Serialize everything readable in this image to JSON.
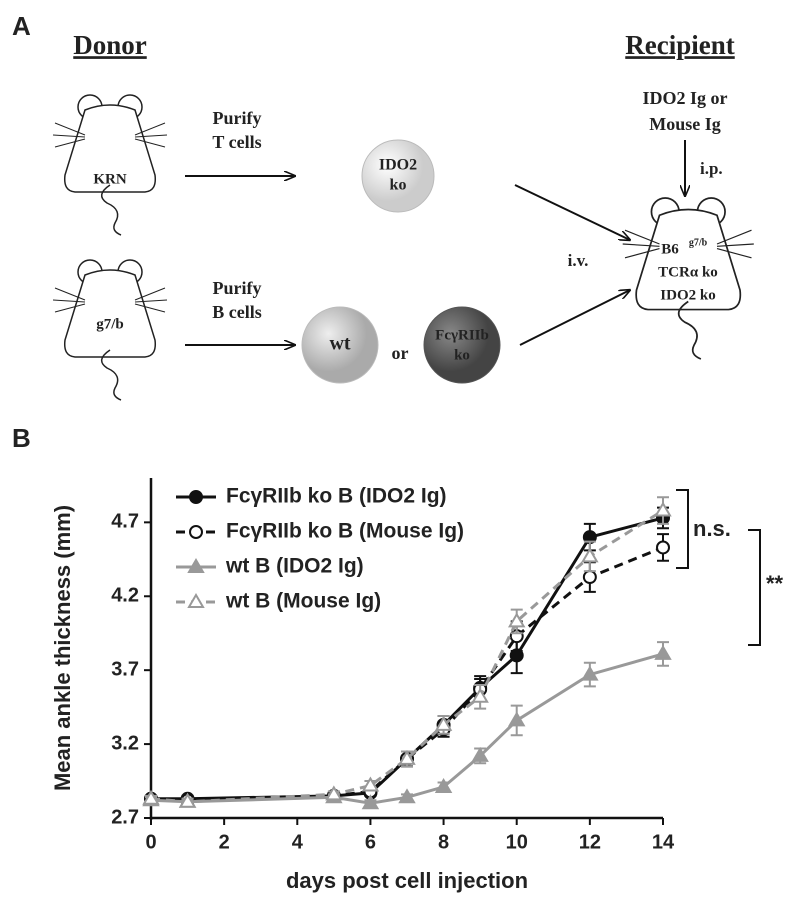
{
  "panel_a": {
    "label": "A",
    "donor": "Donor",
    "recipient": "Recipient",
    "mouse_1": "KRN",
    "step_1": [
      "Purify",
      "T cells"
    ],
    "cell_t": [
      "IDO2",
      "ko"
    ],
    "mouse_2": "g7/b",
    "step_2": [
      "Purify",
      "B cells"
    ],
    "cell_wt": "wt",
    "or": "or",
    "cell_ko": [
      "FcγRIIb",
      "ko"
    ],
    "injection": [
      "IDO2 Ig or",
      "Mouse Ig"
    ],
    "route_ip": "i.p.",
    "route_iv": "i.v.",
    "recipient_mouse": {
      "main": "B6",
      "superscript": "g7/b",
      "lines": [
        "TCRα ko",
        "IDO2 ko"
      ]
    }
  },
  "panel_b": {
    "label": "B",
    "annotations": [
      "n.s.",
      "**"
    ]
  },
  "chart_data": {
    "type": "line",
    "x": [
      0,
      1,
      5,
      6,
      7,
      8,
      9,
      10,
      12,
      14
    ],
    "xlabel": "days post cell injection",
    "ylabel": "Mean ankle thickness (mm)",
    "xlim": [
      0,
      14
    ],
    "xticks": [
      0,
      2,
      4,
      6,
      8,
      10,
      12,
      14
    ],
    "ylim": [
      2.7,
      5.0
    ],
    "yticks": [
      2.7,
      3.2,
      3.7,
      4.2,
      4.7
    ],
    "legend": "upper left",
    "series": [
      {
        "name": "FcγRIIb ko B (IDO2 Ig)",
        "color": "#111111",
        "marker": "circle",
        "filled": true,
        "dashed": false,
        "values": [
          2.83,
          2.83,
          2.85,
          2.87,
          3.1,
          3.33,
          3.58,
          3.8,
          4.6,
          4.73
        ],
        "errors": [
          0.02,
          0.02,
          0.02,
          0.02,
          0.05,
          0.06,
          0.08,
          0.12,
          0.09,
          0.07
        ]
      },
      {
        "name": "FcγRIIb ko B (Mouse Ig)",
        "color": "#111111",
        "marker": "circle",
        "filled": false,
        "dashed": true,
        "values": [
          2.83,
          2.82,
          2.85,
          2.88,
          3.1,
          3.3,
          3.57,
          3.93,
          4.33,
          4.53
        ],
        "errors": [
          0.02,
          0.02,
          0.02,
          0.02,
          0.05,
          0.05,
          0.07,
          0.1,
          0.1,
          0.09
        ]
      },
      {
        "name": "wt B (IDO2 Ig)",
        "color": "#999999",
        "marker": "triangle",
        "filled": true,
        "dashed": false,
        "values": [
          2.82,
          2.81,
          2.84,
          2.8,
          2.84,
          2.91,
          3.12,
          3.36,
          3.67,
          3.81
        ],
        "errors": [
          0.02,
          0.02,
          0.02,
          0.02,
          0.02,
          0.03,
          0.05,
          0.1,
          0.08,
          0.08
        ]
      },
      {
        "name": "wt B (Mouse Ig)",
        "color": "#999999",
        "marker": "triangle",
        "filled": false,
        "dashed": true,
        "values": [
          2.83,
          2.81,
          2.86,
          2.92,
          3.1,
          3.33,
          3.52,
          4.03,
          4.47,
          4.78
        ],
        "errors": [
          0.02,
          0.02,
          0.02,
          0.03,
          0.05,
          0.06,
          0.08,
          0.08,
          0.1,
          0.09
        ]
      }
    ]
  }
}
